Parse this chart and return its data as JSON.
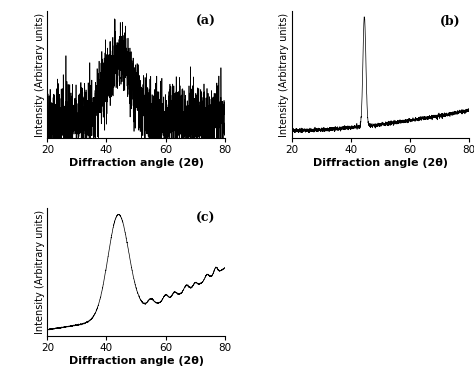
{
  "xlim": [
    20,
    80
  ],
  "xticks": [
    20,
    40,
    60,
    80
  ],
  "xlabel": "Diffraction angle (2θ)",
  "ylabel": "Intensity (Arbitrary units)",
  "label_a": "(a)",
  "label_b": "(b)",
  "label_c": "(c)",
  "background_color": "#ffffff",
  "line_color": "#000000",
  "seed_a": 42,
  "seed_b": 123,
  "seed_c": 7,
  "figsize": [
    4.74,
    3.69
  ],
  "dpi": 100
}
